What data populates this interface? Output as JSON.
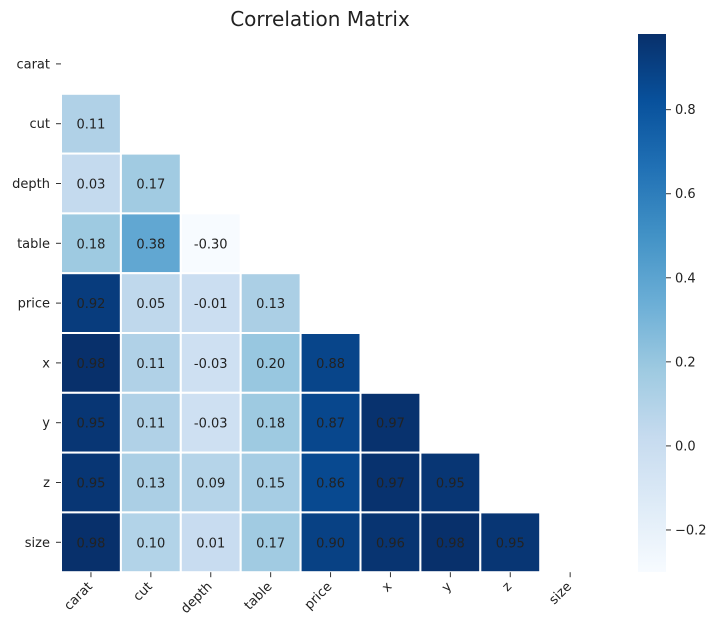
{
  "chart_data": {
    "type": "heatmap",
    "title": "Correlation Matrix",
    "variables": [
      "carat",
      "cut",
      "depth",
      "table",
      "price",
      "x",
      "y",
      "z",
      "size"
    ],
    "mask": "upper-triangle-including-diagonal",
    "matrix": [
      [
        null,
        null,
        null,
        null,
        null,
        null,
        null,
        null,
        null
      ],
      [
        0.11,
        null,
        null,
        null,
        null,
        null,
        null,
        null,
        null
      ],
      [
        0.03,
        0.17,
        null,
        null,
        null,
        null,
        null,
        null,
        null
      ],
      [
        0.18,
        0.38,
        -0.3,
        null,
        null,
        null,
        null,
        null,
        null
      ],
      [
        0.92,
        0.05,
        -0.01,
        0.13,
        null,
        null,
        null,
        null,
        null
      ],
      [
        0.98,
        0.11,
        -0.03,
        0.2,
        0.88,
        null,
        null,
        null,
        null
      ],
      [
        0.95,
        0.11,
        -0.03,
        0.18,
        0.87,
        0.97,
        null,
        null,
        null
      ],
      [
        0.95,
        0.13,
        0.09,
        0.15,
        0.86,
        0.97,
        0.95,
        null,
        null
      ],
      [
        0.98,
        0.1,
        0.01,
        0.17,
        0.9,
        0.96,
        0.98,
        0.95,
        null
      ]
    ],
    "colorbar": {
      "colormap": "Blues",
      "range": [
        -0.3,
        0.98
      ],
      "ticks": [
        -0.2,
        0.0,
        0.2,
        0.4,
        0.6,
        0.8
      ],
      "tick_labels": [
        "−0.2",
        "0.0",
        "0.2",
        "0.4",
        "0.6",
        "0.8"
      ]
    },
    "value_format": "2 decimals",
    "grid_lines": "white",
    "x_tick_rotation": 45
  }
}
